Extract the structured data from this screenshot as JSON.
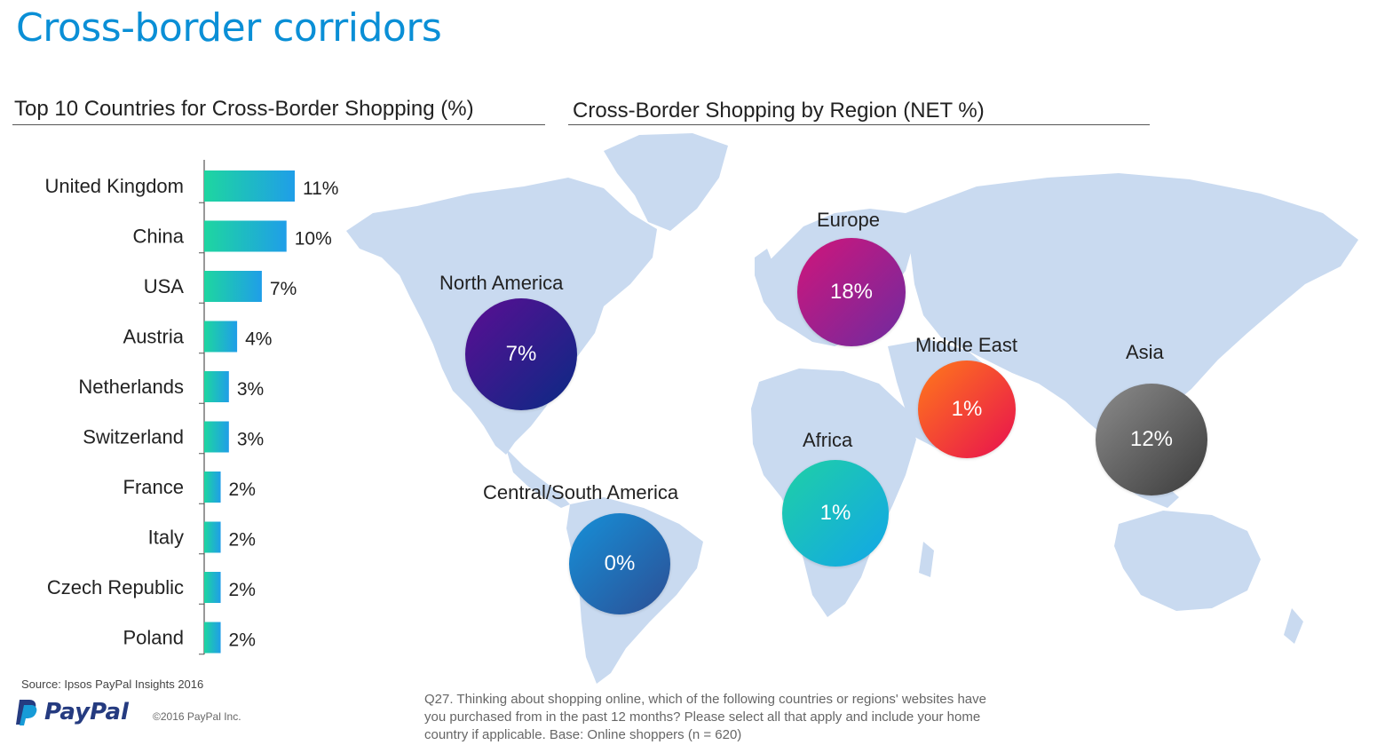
{
  "page": {
    "title": "Cross-border corridors",
    "source": "Source: Ipsos PayPal Insights 2016",
    "brand": "PayPal",
    "copyright": "©2016 PayPal Inc.",
    "question": "Q27. Thinking about shopping online, which of the following countries or regions' websites have you purchased from in the past 12 months? Please select all that apply and include your home country if applicable. Base: Online shoppers (n = 620)"
  },
  "colors": {
    "title": "#0a8fd6",
    "bar_start": "#1ed6a0",
    "bar_end": "#1f9ee8",
    "map_land": "#c9daf0",
    "north_america": [
      "#5b0e93",
      "#0a2a84"
    ],
    "europe": [
      "#d1157a",
      "#6e2ba0"
    ],
    "middle_east": [
      "#ff7a1a",
      "#e8104f"
    ],
    "asia": [
      "#8c8c8c",
      "#3b3b3b"
    ],
    "africa": [
      "#1fd0a5",
      "#12a6e8"
    ],
    "central_south_america": [
      "#1690d8",
      "#2c4f95"
    ]
  },
  "chart_data": [
    {
      "type": "bar",
      "orientation": "horizontal",
      "title": "Top 10 Countries for Cross-Border Shopping (%)",
      "categories": [
        "United Kingdom",
        "China",
        "USA",
        "Austria",
        "Netherlands",
        "Switzerland",
        "France",
        "Italy",
        "Czech Republic",
        "Poland"
      ],
      "values": [
        11,
        10,
        7,
        4,
        3,
        3,
        2,
        2,
        2,
        2
      ],
      "value_labels": [
        "11%",
        "10%",
        "7%",
        "4%",
        "3%",
        "3%",
        "2%",
        "2%",
        "2%",
        "2%"
      ],
      "xlim": [
        0,
        11
      ],
      "grid": false
    },
    {
      "type": "bubble-map",
      "title": "Cross-Border Shopping by Region (NET %)",
      "regions": [
        {
          "key": "north_america",
          "name": "North America",
          "value": 7,
          "label": "7%"
        },
        {
          "key": "europe",
          "name": "Europe",
          "value": 18,
          "label": "18%"
        },
        {
          "key": "middle_east",
          "name": "Middle East",
          "value": 1,
          "label": "1%"
        },
        {
          "key": "asia",
          "name": "Asia",
          "value": 12,
          "label": "12%"
        },
        {
          "key": "africa",
          "name": "Africa",
          "value": 1,
          "label": "1%"
        },
        {
          "key": "central_south_america",
          "name": "Central/South America",
          "value": 0,
          "label": "0%"
        }
      ]
    }
  ]
}
